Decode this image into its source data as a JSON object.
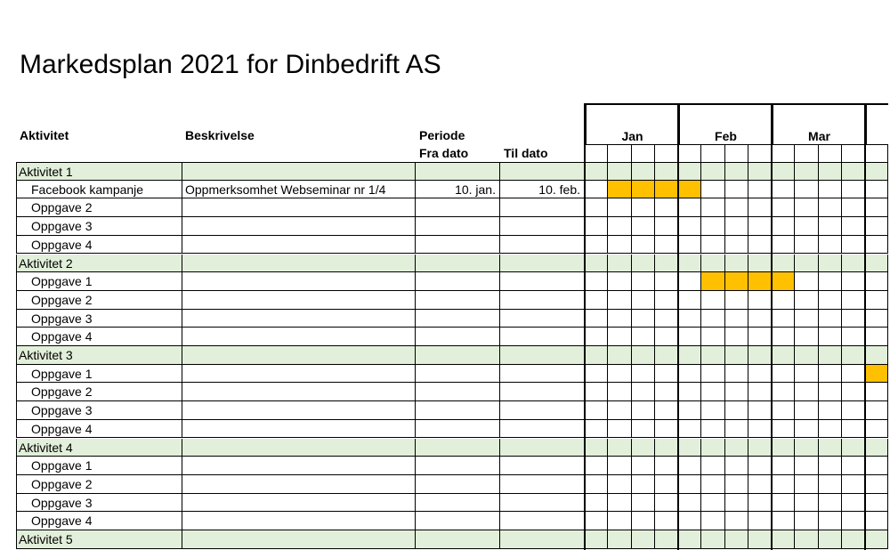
{
  "title": "Markedsplan 2021 for Dinbedrift AS",
  "headers": {
    "activity": "Aktivitet",
    "description": "Beskrivelse",
    "period": "Periode",
    "from": "Fra dato",
    "to": "Til dato"
  },
  "months": [
    "Jan",
    "Feb",
    "Mar",
    ""
  ],
  "weeks_per_month": 4,
  "colors": {
    "group_fill": "#e2efda",
    "bar_fill": "#ffc000"
  },
  "rows": [
    {
      "label": "Aktivitet 1",
      "group": true,
      "desc": "",
      "from": "",
      "to": "",
      "weeks": []
    },
    {
      "label": "Facebook kampanje",
      "group": false,
      "desc": "Oppmerksomhet Webseminar nr 1/4",
      "from": "10. jan.",
      "to": "10. feb.",
      "weeks": [
        1,
        2,
        3,
        4
      ]
    },
    {
      "label": "Oppgave 2",
      "group": false,
      "desc": "",
      "from": "",
      "to": "",
      "weeks": []
    },
    {
      "label": "Oppgave 3",
      "group": false,
      "desc": "",
      "from": "",
      "to": "",
      "weeks": []
    },
    {
      "label": "Oppgave 4",
      "group": false,
      "desc": "",
      "from": "",
      "to": "",
      "weeks": []
    },
    {
      "label": "Aktivitet 2",
      "group": true,
      "desc": "",
      "from": "",
      "to": "",
      "weeks": []
    },
    {
      "label": "Oppgave 1",
      "group": false,
      "desc": "",
      "from": "",
      "to": "",
      "weeks": [
        5,
        6,
        7,
        8
      ]
    },
    {
      "label": "Oppgave 2",
      "group": false,
      "desc": "",
      "from": "",
      "to": "",
      "weeks": []
    },
    {
      "label": "Oppgave 3",
      "group": false,
      "desc": "",
      "from": "",
      "to": "",
      "weeks": []
    },
    {
      "label": "Oppgave 4",
      "group": false,
      "desc": "",
      "from": "",
      "to": "",
      "weeks": []
    },
    {
      "label": "Aktivitet 3",
      "group": true,
      "desc": "",
      "from": "",
      "to": "",
      "weeks": []
    },
    {
      "label": "Oppgave 1",
      "group": false,
      "desc": "",
      "from": "",
      "to": "",
      "weeks": [
        12
      ]
    },
    {
      "label": "Oppgave 2",
      "group": false,
      "desc": "",
      "from": "",
      "to": "",
      "weeks": []
    },
    {
      "label": "Oppgave 3",
      "group": false,
      "desc": "",
      "from": "",
      "to": "",
      "weeks": []
    },
    {
      "label": "Oppgave 4",
      "group": false,
      "desc": "",
      "from": "",
      "to": "",
      "weeks": []
    },
    {
      "label": "Aktivitet 4",
      "group": true,
      "desc": "",
      "from": "",
      "to": "",
      "weeks": []
    },
    {
      "label": "Oppgave 1",
      "group": false,
      "desc": "",
      "from": "",
      "to": "",
      "weeks": []
    },
    {
      "label": "Oppgave 2",
      "group": false,
      "desc": "",
      "from": "",
      "to": "",
      "weeks": []
    },
    {
      "label": "Oppgave 3",
      "group": false,
      "desc": "",
      "from": "",
      "to": "",
      "weeks": []
    },
    {
      "label": "Oppgave 4",
      "group": false,
      "desc": "",
      "from": "",
      "to": "",
      "weeks": []
    },
    {
      "label": "Aktivitet 5",
      "group": true,
      "desc": "",
      "from": "",
      "to": "",
      "weeks": []
    }
  ]
}
